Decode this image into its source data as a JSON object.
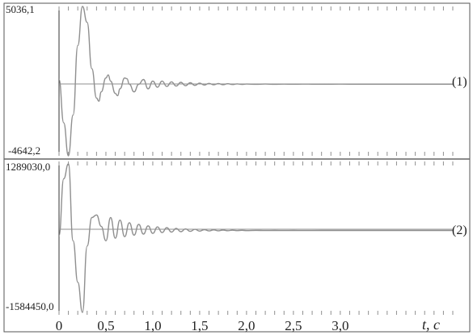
{
  "chart_data": [
    {
      "type": "line",
      "series_label": "(1)",
      "ylim": [
        -4642.2,
        5036.1
      ],
      "y_top_label": "5036,1",
      "y_bottom_label": "-4642,2",
      "xlim": [
        0,
        4.2
      ],
      "x": [
        0,
        0.05,
        0.1,
        0.15,
        0.2,
        0.25,
        0.3,
        0.35,
        0.4,
        0.425,
        0.45,
        0.5,
        0.525,
        0.55,
        0.6,
        0.625,
        0.65,
        0.7,
        0.725,
        0.75,
        0.8,
        0.85,
        0.9,
        0.95,
        1.0,
        1.05,
        1.1,
        1.15,
        1.2,
        1.25,
        1.3,
        1.35,
        1.4,
        1.45,
        1.5,
        1.55,
        1.6,
        1.65,
        1.7,
        1.75,
        1.8,
        1.85,
        1.9,
        1.95,
        2.0,
        2.1,
        2.2,
        2.3,
        2.4,
        2.5,
        2.6,
        2.8,
        3.0,
        3.2,
        3.5,
        3.8,
        4.0,
        4.2
      ],
      "y": [
        300,
        -2500,
        -4642.2,
        -2000,
        2500,
        5036.1,
        4000,
        1000,
        -900,
        -1100,
        -500,
        400,
        600,
        200,
        -600,
        -750,
        -300,
        400,
        350,
        0,
        -500,
        0,
        300,
        -300,
        200,
        -200,
        200,
        -150,
        150,
        -120,
        120,
        -100,
        90,
        -80,
        70,
        -60,
        50,
        -45,
        40,
        -35,
        30,
        -25,
        20,
        -15,
        10,
        -8,
        6,
        -5,
        4,
        -3,
        2,
        -1,
        1,
        0,
        0,
        0,
        0,
        0
      ]
    },
    {
      "type": "line",
      "series_label": "(2)",
      "ylim": [
        -1584450.0,
        1289030.0
      ],
      "y_top_label": "1289030,0",
      "y_bottom_label": "-1584450,0",
      "xlim": [
        0,
        4.2
      ],
      "x": [
        0,
        0.05,
        0.1,
        0.15,
        0.2,
        0.25,
        0.3,
        0.35,
        0.4,
        0.45,
        0.5,
        0.55,
        0.6,
        0.65,
        0.7,
        0.75,
        0.8,
        0.85,
        0.9,
        0.95,
        1.0,
        1.05,
        1.1,
        1.15,
        1.2,
        1.25,
        1.3,
        1.35,
        1.4,
        1.45,
        1.5,
        1.55,
        1.6,
        1.65,
        1.7,
        1.75,
        1.8,
        1.85,
        1.9,
        1.95,
        2.0,
        2.1,
        2.2,
        2.3,
        2.4,
        2.5,
        2.6,
        2.8,
        3.0,
        3.2,
        3.5,
        3.8,
        4.0,
        4.2
      ],
      "y": [
        -100000,
        1000000,
        1289030,
        -200000,
        -1000000,
        -1584450,
        -300000,
        250000,
        300000,
        80000,
        -200000,
        250000,
        -150000,
        200000,
        -120000,
        150000,
        -90000,
        120000,
        -70000,
        90000,
        -55000,
        70000,
        -40000,
        55000,
        -30000,
        40000,
        -22000,
        30000,
        -16000,
        22000,
        -12000,
        16000,
        -9000,
        12000,
        -6000,
        8000,
        -4000,
        5000,
        -3000,
        3500,
        -2000,
        1500,
        -1000,
        800,
        -500,
        300,
        -200,
        100,
        0,
        0,
        0,
        0,
        0,
        0
      ]
    }
  ],
  "x_axis": {
    "tick_values": [
      0,
      0.5,
      1.0,
      1.5,
      2.0,
      2.5,
      3.0
    ],
    "tick_labels": [
      "0",
      "0,5",
      "1,0",
      "1,5",
      "2,0",
      "2,5",
      "3,0"
    ],
    "unit_label": "t, c"
  },
  "colors": {
    "trace": "#8f8f8f",
    "axis": "#333333",
    "border": "#555555",
    "divider": "#666666"
  }
}
